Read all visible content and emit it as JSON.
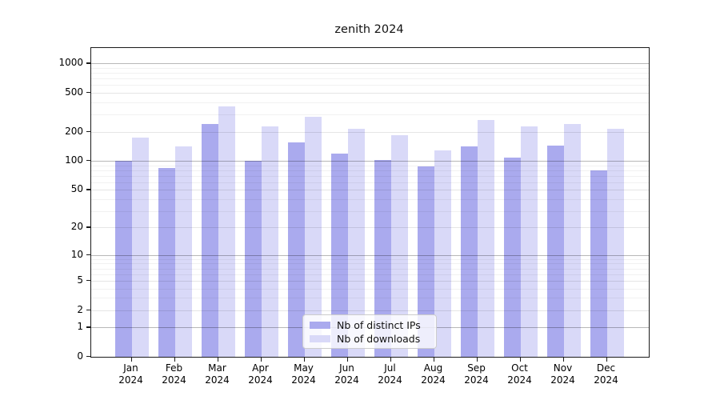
{
  "chart_data": {
    "type": "bar",
    "title": "zenith 2024",
    "categories": [
      "Jan 2024",
      "Feb 2024",
      "Mar 2024",
      "Apr 2024",
      "May 2024",
      "Jun 2024",
      "Jul 2024",
      "Aug 2024",
      "Sep 2024",
      "Oct 2024",
      "Nov 2024",
      "Dec 2024"
    ],
    "series": [
      {
        "name": "Nb of distinct IPs",
        "color": "#aaaaee",
        "values": [
          100,
          85,
          240,
          100,
          155,
          118,
          102,
          87,
          140,
          108,
          145,
          80
        ]
      },
      {
        "name": "Nb of downloads",
        "color": "#d9d9f8",
        "values": [
          175,
          140,
          365,
          228,
          285,
          215,
          183,
          127,
          265,
          228,
          240,
          213
        ]
      }
    ],
    "y_ticks": [
      0,
      1,
      2,
      5,
      10,
      20,
      50,
      100,
      200,
      500,
      1000
    ],
    "y_major_ticks": [
      1,
      10,
      100,
      1000
    ],
    "y_scale": "log1p",
    "ylim": [
      0,
      1440
    ],
    "xlabel": "",
    "ylabel": "",
    "grid": "on",
    "legend_position": "lower center"
  }
}
